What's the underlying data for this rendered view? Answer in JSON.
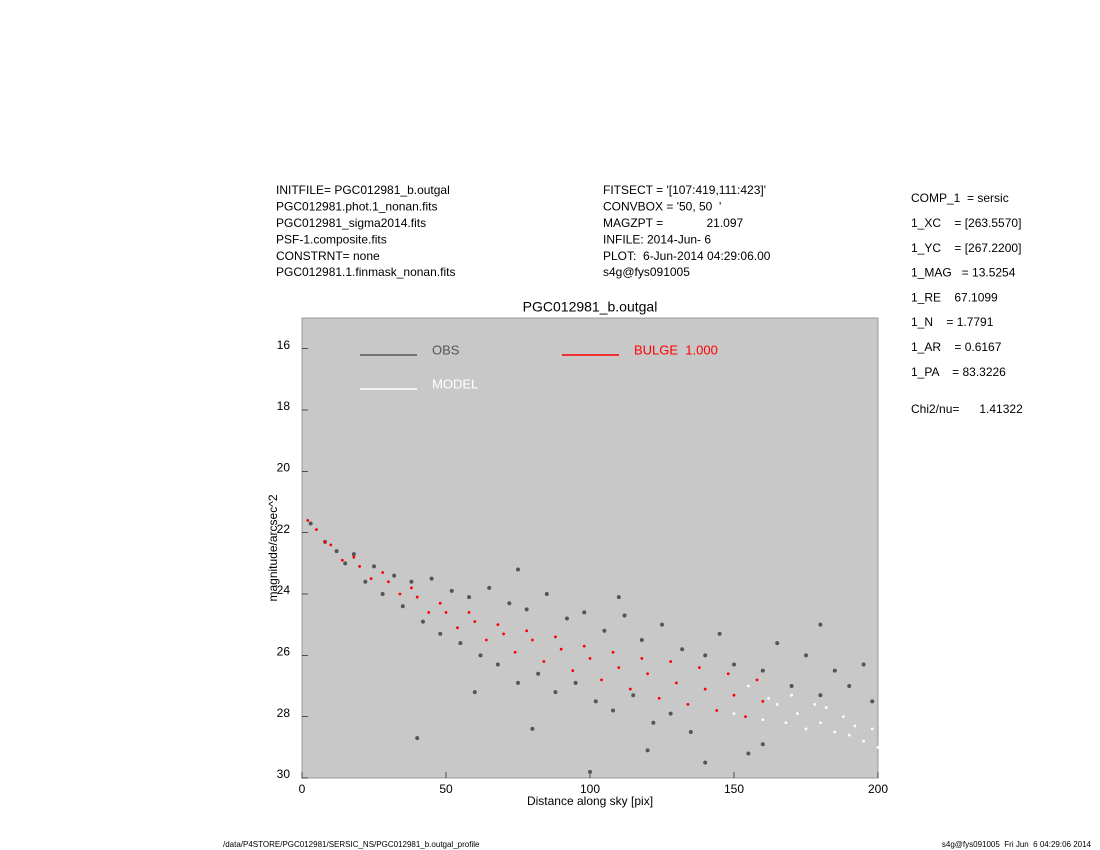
{
  "header": {
    "left": [
      "INITFILE= PGC012981_b.outgal",
      "PGC012981.phot.1_nonan.fits",
      "PGC012981_sigma2014.fits",
      "PSF-1.composite.fits",
      "CONSTRNT= none",
      "PGC012981.1.finmask_nonan.fits"
    ],
    "middle": [
      "FITSECT = '[107:419,111:423]'",
      "CONVBOX = '50, 50  '",
      "MAGZPT =             21.097",
      "INFILE: 2014-Jun- 6",
      "PLOT:  6-Jun-2014 04:29:06.00",
      "s4g@fys091005"
    ],
    "right": [
      "COMP_1  = sersic",
      "1_XC    = [263.5570]",
      "1_YC    = [267.2200]",
      "1_MAG   = 13.5254",
      "1_RE    67.1099",
      "1_N    = 1.7791",
      "1_AR    = 0.6167",
      "1_PA    = 83.3226"
    ],
    "chi2": "Chi2/nu=      1.41322"
  },
  "footer": {
    "left": "/data/P4STORE/PGC012981/SERSIC_NS/PGC012981_b.outgal_profile",
    "right": "s4g@fys091005  Fri Jun  6 04:29:06 2014"
  },
  "chart_data": {
    "type": "scatter",
    "title": "PGC012981_b.outgal",
    "x_label": "Distance along sky [pix]",
    "y_label": "magnitude/arcsec^2",
    "xlim": [
      0,
      200
    ],
    "xticks": [
      0,
      50,
      100,
      150,
      200
    ],
    "ylim": [
      30,
      15
    ],
    "yticks": [
      16,
      18,
      20,
      22,
      24,
      26,
      28,
      30
    ],
    "background": "#c8c8c8",
    "series": [
      {
        "name": "OBS",
        "color": "#555555",
        "x": [
          3,
          8,
          12,
          15,
          18,
          22,
          25,
          28,
          32,
          35,
          38,
          42,
          45,
          48,
          52,
          55,
          58,
          62,
          65,
          68,
          72,
          75,
          78,
          82,
          85,
          88,
          92,
          95,
          98,
          102,
          105,
          108,
          112,
          115,
          118,
          122,
          125,
          128,
          132,
          135,
          140,
          145,
          150,
          155,
          160,
          165,
          170,
          175,
          180,
          185,
          190,
          195,
          198,
          40,
          60,
          80,
          100,
          120,
          140,
          160,
          180,
          75,
          110
        ],
        "values": [
          21.7,
          22.3,
          22.6,
          23.0,
          22.7,
          23.6,
          23.1,
          24.0,
          23.4,
          24.4,
          23.6,
          24.9,
          23.5,
          25.3,
          23.9,
          25.6,
          24.1,
          26.0,
          23.8,
          26.3,
          24.3,
          26.9,
          24.5,
          26.6,
          24.0,
          27.2,
          24.8,
          26.9,
          24.6,
          27.5,
          25.2,
          27.8,
          24.7,
          27.3,
          25.5,
          28.2,
          25.0,
          27.9,
          25.8,
          28.5,
          26.0,
          25.3,
          26.3,
          29.2,
          26.5,
          25.6,
          27.0,
          26.0,
          27.3,
          26.5,
          27.0,
          26.3,
          27.5,
          28.7,
          27.2,
          28.4,
          29.8,
          29.1,
          29.5,
          28.9,
          25.0,
          23.2,
          24.1
        ]
      },
      {
        "name": "BULGE  1.000",
        "color": "#ff0000",
        "x": [
          2,
          5,
          8,
          10,
          14,
          18,
          20,
          24,
          28,
          30,
          34,
          38,
          40,
          44,
          48,
          50,
          54,
          58,
          60,
          64,
          68,
          70,
          74,
          78,
          80,
          84,
          88,
          90,
          94,
          98,
          100,
          104,
          108,
          110,
          114,
          118,
          120,
          124,
          128,
          130,
          134,
          138,
          140,
          144,
          148,
          150,
          154,
          158,
          160
        ],
        "values": [
          21.6,
          21.9,
          22.3,
          22.4,
          22.9,
          22.8,
          23.1,
          23.5,
          23.3,
          23.6,
          24.0,
          23.8,
          24.1,
          24.6,
          24.3,
          24.6,
          25.1,
          24.6,
          24.9,
          25.5,
          25.0,
          25.3,
          25.9,
          25.2,
          25.5,
          26.2,
          25.4,
          25.8,
          26.5,
          25.7,
          26.1,
          26.8,
          25.9,
          26.4,
          27.1,
          26.1,
          26.6,
          27.4,
          26.2,
          26.9,
          27.6,
          26.4,
          27.1,
          27.8,
          26.6,
          27.3,
          28.0,
          26.8,
          27.5
        ]
      },
      {
        "name": "MODEL",
        "color": "#ffffff",
        "x": [
          150,
          155,
          160,
          162,
          165,
          168,
          170,
          172,
          175,
          178,
          180,
          182,
          185,
          188,
          190,
          192,
          195,
          198,
          200
        ],
        "values": [
          27.9,
          27.0,
          28.1,
          27.4,
          27.6,
          28.2,
          27.3,
          27.9,
          28.4,
          27.6,
          28.2,
          27.7,
          28.5,
          28.0,
          28.6,
          28.3,
          28.8,
          28.4,
          29.0
        ]
      }
    ]
  }
}
